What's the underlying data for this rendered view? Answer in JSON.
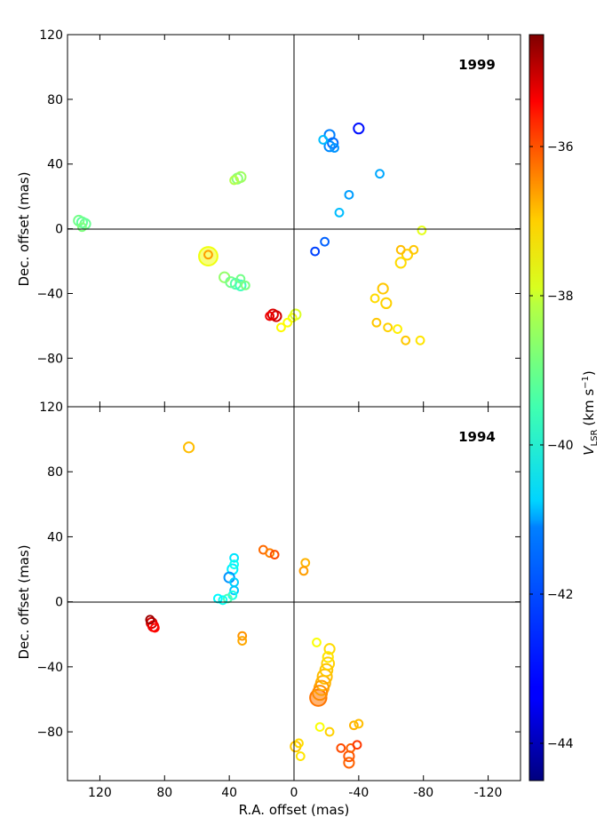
{
  "figure": {
    "xlabel": "R.A. offset (mas)",
    "colorbar_label": "V",
    "colorbar_label_sub": "LSR",
    "colorbar_unit": "(km s",
    "colorbar_unit_sup": "−1",
    "colorbar_unit_end": ")"
  },
  "chart_data": [
    {
      "type": "scatter",
      "panel": "top",
      "epoch_label": "1999",
      "ylabel": "Dec. offset (mas)",
      "xlabel": "R.A. offset (mas)",
      "xlim": [
        140,
        -140
      ],
      "ylim": [
        -110,
        120
      ],
      "xticks": [
        120,
        80,
        40,
        0,
        -40,
        -80,
        -120
      ],
      "xtick_labels": [
        "120",
        "80",
        "40",
        "0",
        "-40",
        "-80",
        "-120"
      ],
      "yticks": [
        120,
        80,
        40,
        0,
        -40,
        -80
      ],
      "ytick_labels": [
        "120",
        "80",
        "40",
        "0",
        "−40",
        "−80"
      ],
      "reference_lines": {
        "x": 0,
        "y": 0
      },
      "color_variable": "V_LSR (km/s)",
      "points": [
        {
          "x": 131,
          "y": 4,
          "v": -39.8,
          "s": 3
        },
        {
          "x": 133,
          "y": 5,
          "v": -39.6,
          "s": 3
        },
        {
          "x": 129,
          "y": 3,
          "v": -39.7,
          "s": 3
        },
        {
          "x": 131,
          "y": 1,
          "v": -39.5,
          "s": 2
        },
        {
          "x": 35,
          "y": 31,
          "v": -39.4,
          "s": 3
        },
        {
          "x": 33,
          "y": 32,
          "v": -39.2,
          "s": 3
        },
        {
          "x": 37,
          "y": 30,
          "v": -39.0,
          "s": 2
        },
        {
          "x": 53,
          "y": -17,
          "v": -38.4,
          "s": 7
        },
        {
          "x": 53,
          "y": -16,
          "v": -37.3,
          "s": 2
        },
        {
          "x": 43,
          "y": -30,
          "v": -39.3,
          "s": 3
        },
        {
          "x": 39,
          "y": -33,
          "v": -39.6,
          "s": 3
        },
        {
          "x": 36,
          "y": -34,
          "v": -39.9,
          "s": 3
        },
        {
          "x": 33,
          "y": -35,
          "v": -40.1,
          "s": 3
        },
        {
          "x": 30,
          "y": -35,
          "v": -39.5,
          "s": 2
        },
        {
          "x": 33,
          "y": -31,
          "v": -39.6,
          "s": 2
        },
        {
          "x": 13,
          "y": -53,
          "v": -35.4,
          "s": 3
        },
        {
          "x": 11,
          "y": -54,
          "v": -35.3,
          "s": 3
        },
        {
          "x": 15,
          "y": -54,
          "v": -35.6,
          "s": 2
        },
        {
          "x": -1,
          "y": -53,
          "v": -38.6,
          "s": 3
        },
        {
          "x": 1,
          "y": -55,
          "v": -38.4,
          "s": 2
        },
        {
          "x": 4,
          "y": -58,
          "v": -38.3,
          "s": 2
        },
        {
          "x": 8,
          "y": -61,
          "v": -38.2,
          "s": 2
        },
        {
          "x": -22,
          "y": 58,
          "v": -42.0,
          "s": 3
        },
        {
          "x": -24,
          "y": 53,
          "v": -42.2,
          "s": 3
        },
        {
          "x": -22,
          "y": 51,
          "v": -41.9,
          "s": 3
        },
        {
          "x": -18,
          "y": 55,
          "v": -41.4,
          "s": 2
        },
        {
          "x": -25,
          "y": 50,
          "v": -41.8,
          "s": 2
        },
        {
          "x": -40,
          "y": 62,
          "v": -43.1,
          "s": 3
        },
        {
          "x": -53,
          "y": 34,
          "v": -41.6,
          "s": 2
        },
        {
          "x": -34,
          "y": 21,
          "v": -41.7,
          "s": 2
        },
        {
          "x": -28,
          "y": 10,
          "v": -41.4,
          "s": 2
        },
        {
          "x": -19,
          "y": -8,
          "v": -42.3,
          "s": 2
        },
        {
          "x": -13,
          "y": -14,
          "v": -42.6,
          "s": 2
        },
        {
          "x": -66,
          "y": -13,
          "v": -37.6,
          "s": 2
        },
        {
          "x": -70,
          "y": -16,
          "v": -37.8,
          "s": 3
        },
        {
          "x": -66,
          "y": -21,
          "v": -37.9,
          "s": 3
        },
        {
          "x": -74,
          "y": -13,
          "v": -37.7,
          "s": 2
        },
        {
          "x": -79,
          "y": -1,
          "v": -38.5,
          "s": 2
        },
        {
          "x": -55,
          "y": -37,
          "v": -37.7,
          "s": 3
        },
        {
          "x": -57,
          "y": -46,
          "v": -37.8,
          "s": 3
        },
        {
          "x": -50,
          "y": -43,
          "v": -37.9,
          "s": 2
        },
        {
          "x": -51,
          "y": -58,
          "v": -37.7,
          "s": 2
        },
        {
          "x": -58,
          "y": -61,
          "v": -37.8,
          "s": 2
        },
        {
          "x": -64,
          "y": -62,
          "v": -38.1,
          "s": 2
        },
        {
          "x": -69,
          "y": -69,
          "v": -37.7,
          "s": 2
        },
        {
          "x": -78,
          "y": -69,
          "v": -38.0,
          "s": 2
        }
      ]
    },
    {
      "type": "scatter",
      "panel": "bottom",
      "epoch_label": "1994",
      "ylabel": "Dec. offset (mas)",
      "xlabel": "R.A. offset (mas)",
      "xlim": [
        140,
        -140
      ],
      "ylim": [
        -110,
        120
      ],
      "xticks": [
        120,
        80,
        40,
        0,
        -40,
        -80,
        -120
      ],
      "xtick_labels": [
        "120",
        "80",
        "40",
        "0",
        "-40",
        "-80",
        "-120"
      ],
      "yticks": [
        120,
        80,
        40,
        0,
        -40,
        -80
      ],
      "ytick_labels": [
        "120",
        "80",
        "40",
        "0",
        "−40",
        "−80"
      ],
      "reference_lines": {
        "x": 0,
        "y": 0
      },
      "color_variable": "V_LSR (km/s)",
      "points": [
        {
          "x": 65,
          "y": 95,
          "v": -37.6,
          "s": 3
        },
        {
          "x": 89,
          "y": -11,
          "v": -34.8,
          "s": 2
        },
        {
          "x": 88,
          "y": -13,
          "v": -35.3,
          "s": 3
        },
        {
          "x": 87,
          "y": -15,
          "v": -35.6,
          "s": 3
        },
        {
          "x": 86,
          "y": -16,
          "v": -35.8,
          "s": 2
        },
        {
          "x": 37,
          "y": 27,
          "v": -41.0,
          "s": 2
        },
        {
          "x": 37,
          "y": 23,
          "v": -40.6,
          "s": 2
        },
        {
          "x": 38,
          "y": 20,
          "v": -40.9,
          "s": 3
        },
        {
          "x": 40,
          "y": 15,
          "v": -41.8,
          "s": 3
        },
        {
          "x": 37,
          "y": 12,
          "v": -41.2,
          "s": 2
        },
        {
          "x": 37,
          "y": 7,
          "v": -41.3,
          "s": 2
        },
        {
          "x": 38,
          "y": 4,
          "v": -40.5,
          "s": 2
        },
        {
          "x": 41,
          "y": 2,
          "v": -40.0,
          "s": 2
        },
        {
          "x": 44,
          "y": 1,
          "v": -40.6,
          "s": 2
        },
        {
          "x": 47,
          "y": 2,
          "v": -40.8,
          "s": 2
        },
        {
          "x": 32,
          "y": -21,
          "v": -37.2,
          "s": 2
        },
        {
          "x": 32,
          "y": -24,
          "v": -37.4,
          "s": 2
        },
        {
          "x": 19,
          "y": 32,
          "v": -36.8,
          "s": 2
        },
        {
          "x": 15,
          "y": 30,
          "v": -37.0,
          "s": 2
        },
        {
          "x": 12,
          "y": 29,
          "v": -36.5,
          "s": 2
        },
        {
          "x": -7,
          "y": 24,
          "v": -37.5,
          "s": 2
        },
        {
          "x": -6,
          "y": 19,
          "v": -37.3,
          "s": 2
        },
        {
          "x": -14,
          "y": -25,
          "v": -38.3,
          "s": 2
        },
        {
          "x": -22,
          "y": -29,
          "v": -37.9,
          "s": 3
        },
        {
          "x": -21,
          "y": -34,
          "v": -38.0,
          "s": 3
        },
        {
          "x": -21,
          "y": -38,
          "v": -37.8,
          "s": 4
        },
        {
          "x": -20,
          "y": -42,
          "v": -37.7,
          "s": 4
        },
        {
          "x": -19,
          "y": -46,
          "v": -37.6,
          "s": 5
        },
        {
          "x": -18,
          "y": -50,
          "v": -37.5,
          "s": 5
        },
        {
          "x": -17,
          "y": -53,
          "v": -37.3,
          "s": 5
        },
        {
          "x": -16,
          "y": -56,
          "v": -37.1,
          "s": 5
        },
        {
          "x": -15,
          "y": -59,
          "v": -36.9,
          "s": 6
        },
        {
          "x": -16,
          "y": -77,
          "v": -38.3,
          "s": 2
        },
        {
          "x": -22,
          "y": -80,
          "v": -37.8,
          "s": 2
        },
        {
          "x": -37,
          "y": -76,
          "v": -37.5,
          "s": 2
        },
        {
          "x": -40,
          "y": -75,
          "v": -37.6,
          "s": 2
        },
        {
          "x": -1,
          "y": -89,
          "v": -37.7,
          "s": 3
        },
        {
          "x": -3,
          "y": -87,
          "v": -37.9,
          "s": 2
        },
        {
          "x": -4,
          "y": -95,
          "v": -38.0,
          "s": 2
        },
        {
          "x": -29,
          "y": -90,
          "v": -36.5,
          "s": 2
        },
        {
          "x": -35,
          "y": -90,
          "v": -36.7,
          "s": 2
        },
        {
          "x": -39,
          "y": -88,
          "v": -36.3,
          "s": 2
        },
        {
          "x": -34,
          "y": -95,
          "v": -36.6,
          "s": 3
        },
        {
          "x": -34,
          "y": -99,
          "v": -36.7,
          "s": 3
        }
      ]
    }
  ],
  "colorbar": {
    "vmin": -44.5,
    "vmax": -34.5,
    "ticks": [
      -36,
      -38,
      -40,
      -42,
      -44
    ],
    "tick_labels": [
      "−36",
      "−38",
      "−40",
      "−42",
      "−44"
    ]
  }
}
